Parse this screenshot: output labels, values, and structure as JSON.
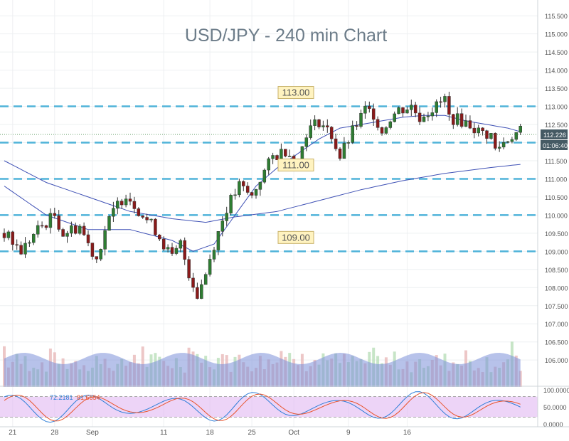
{
  "colors": {
    "up_candle": "#2e7d32",
    "down_candle": "#8b1a1a",
    "ma_line": "#3f51b5",
    "level_line": "#4fb3d9",
    "price_tag": "#455a64",
    "volume_fill": "#7b8fd8",
    "osc_band": "#e1b7f2",
    "osc_fast": "#2f7fd8",
    "osc_slow": "#e8542c",
    "title_color": "#6c7c89",
    "level_label_bg": "#fff3c0"
  },
  "chart_data": {
    "type": "candlestick",
    "title": "USD/JPY - 240 min Chart",
    "ylim": [
      105.65,
      115.7
    ],
    "y_ticks": [
      "115.500",
      "115.000",
      "114.500",
      "114.000",
      "113.500",
      "113.000",
      "112.500",
      "112.000",
      "111.500",
      "111.000",
      "110.500",
      "110.000",
      "109.500",
      "109.000",
      "108.500",
      "108.000",
      "107.500",
      "107.000",
      "106.500",
      "106.000"
    ],
    "x_tick_labels": [
      "21",
      "28",
      "Sep",
      "11",
      "18",
      "25",
      "Oct",
      "9",
      "16"
    ],
    "levels": [
      {
        "value": 113.0,
        "label": "113.00"
      },
      {
        "value": 112.0,
        "label": ""
      },
      {
        "value": 111.0,
        "label": "111.00"
      },
      {
        "value": 110.0,
        "label": ""
      },
      {
        "value": 109.0,
        "label": "109.00"
      }
    ],
    "current_price": "112.226",
    "countdown": "01:06:40",
    "close_path": [
      [
        0,
        109.5
      ],
      [
        4,
        109.0
      ],
      [
        8,
        109.6
      ],
      [
        12,
        110.0
      ],
      [
        14,
        109.5
      ],
      [
        18,
        109.7
      ],
      [
        20,
        109.2
      ],
      [
        22,
        108.8
      ],
      [
        24,
        109.6
      ],
      [
        27,
        110.3
      ],
      [
        29,
        110.6
      ],
      [
        31,
        110.3
      ],
      [
        33,
        110.0
      ],
      [
        36,
        109.6
      ],
      [
        38,
        109.2
      ],
      [
        40,
        108.8
      ],
      [
        42,
        109.2
      ],
      [
        44,
        108.4
      ],
      [
        46,
        107.8
      ],
      [
        48,
        108.4
      ],
      [
        50,
        109.2
      ],
      [
        53,
        110.2
      ],
      [
        56,
        110.8
      ],
      [
        59,
        110.5
      ],
      [
        61,
        111.0
      ],
      [
        64,
        111.6
      ],
      [
        67,
        111.8
      ],
      [
        70,
        111.5
      ],
      [
        72,
        112.3
      ],
      [
        75,
        112.6
      ],
      [
        78,
        112.2
      ],
      [
        80,
        111.6
      ],
      [
        83,
        112.3
      ],
      [
        86,
        112.9
      ],
      [
        88,
        112.8
      ],
      [
        90,
        112.3
      ],
      [
        92,
        112.7
      ],
      [
        94,
        112.9
      ],
      [
        97,
        113.0
      ],
      [
        99,
        112.7
      ],
      [
        100,
        112.8
      ],
      [
        103,
        113.0
      ],
      [
        105,
        113.2
      ],
      [
        106,
        112.7
      ],
      [
        109,
        112.6
      ],
      [
        111,
        112.5
      ],
      [
        113,
        112.3
      ],
      [
        116,
        112.2
      ],
      [
        117,
        111.8
      ],
      [
        119,
        112.0
      ],
      [
        121,
        112.2
      ],
      [
        123,
        112.3
      ]
    ],
    "ma_fast": [
      [
        0,
        110.8
      ],
      [
        10,
        110.0
      ],
      [
        20,
        109.6
      ],
      [
        30,
        109.6
      ],
      [
        40,
        109.3
      ],
      [
        45,
        109.0
      ],
      [
        50,
        109.2
      ],
      [
        55,
        110.0
      ],
      [
        60,
        110.8
      ],
      [
        65,
        111.3
      ],
      [
        70,
        111.7
      ],
      [
        75,
        112.1
      ],
      [
        80,
        112.4
      ],
      [
        85,
        112.5
      ],
      [
        90,
        112.6
      ],
      [
        95,
        112.7
      ],
      [
        100,
        112.75
      ],
      [
        105,
        112.75
      ],
      [
        110,
        112.6
      ],
      [
        115,
        112.5
      ],
      [
        120,
        112.4
      ],
      [
        123,
        112.3
      ]
    ],
    "ma_slow": [
      [
        0,
        111.5
      ],
      [
        10,
        110.9
      ],
      [
        20,
        110.5
      ],
      [
        30,
        110.1
      ],
      [
        40,
        109.9
      ],
      [
        48,
        109.8
      ],
      [
        55,
        109.95
      ],
      [
        65,
        110.1
      ],
      [
        75,
        110.4
      ],
      [
        85,
        110.7
      ],
      [
        95,
        110.95
      ],
      [
        105,
        111.15
      ],
      [
        115,
        111.3
      ],
      [
        123,
        111.4
      ]
    ],
    "volume_scale_max": 100,
    "oscillator": {
      "ylim": [
        0,
        100
      ],
      "tick_labels": [
        "100.0000",
        "50.0000",
        "0.0000"
      ],
      "legend_values": [
        "72.2181",
        "81.6654"
      ],
      "band": [
        20,
        80
      ]
    },
    "candle_count": 124,
    "axis_indices": {
      "x_ticks": [
        2,
        12,
        21,
        38,
        49,
        59,
        69,
        82,
        96
      ]
    }
  }
}
